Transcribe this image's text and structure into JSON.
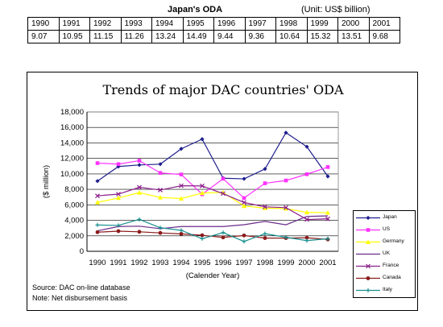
{
  "table": {
    "title": "Japan's ODA",
    "unit": "(Unit: US$ billion)",
    "years": [
      "1990",
      "1991",
      "1992",
      "1993",
      "1994",
      "1995",
      "1996",
      "1997",
      "1998",
      "1999",
      "2000",
      "2001"
    ],
    "values": [
      "9.07",
      "10.95",
      "11.15",
      "11.26",
      "13.24",
      "14.49",
      "9.44",
      "9.36",
      "10.64",
      "15.32",
      "13.51",
      "9.68"
    ]
  },
  "chart_data": {
    "type": "line",
    "title": "Trends of major DAC countries' ODA",
    "xlabel": "(Calender Year)",
    "ylabel": "($ million)",
    "ylim": [
      0,
      18000
    ],
    "yticks": [
      "0",
      "2,000",
      "4,000",
      "6,000",
      "8,000",
      "10,000",
      "12,000",
      "14,000",
      "16,000",
      "18,000"
    ],
    "categories": [
      "1990",
      "1991",
      "1992",
      "1993",
      "1994",
      "1995",
      "1996",
      "1997",
      "1998",
      "1999",
      "2000",
      "2001"
    ],
    "legend_position": "right",
    "series": [
      {
        "name": "Japan",
        "color": "#1f1f8f",
        "marker": "diamond",
        "values": [
          9069,
          10952,
          11151,
          11259,
          13239,
          14489,
          9439,
          9358,
          10640,
          15323,
          13508,
          9678
        ]
      },
      {
        "name": "US",
        "color": "#ff33ff",
        "marker": "square",
        "values": [
          11394,
          11262,
          11709,
          10123,
          9927,
          7367,
          9377,
          6878,
          8786,
          9145,
          9955,
          10884
        ]
      },
      {
        "name": "Germany",
        "color": "#ffff00",
        "marker": "triangle",
        "values": [
          6320,
          6890,
          7583,
          6954,
          6818,
          7524,
          7601,
          5857,
          5581,
          5515,
          5030,
          4990
        ]
      },
      {
        "name": "UK",
        "color": "#6a2a8a",
        "marker": "none",
        "values": [
          2638,
          3201,
          3243,
          2920,
          3197,
          3202,
          3199,
          3433,
          3864,
          3426,
          4501,
          4579
        ]
      },
      {
        "name": "France",
        "color": "#8b1f8b",
        "marker": "x",
        "values": [
          7163,
          7386,
          8270,
          7915,
          8466,
          8443,
          7451,
          6307,
          5742,
          5639,
          4105,
          4198
        ]
      },
      {
        "name": "Canada",
        "color": "#8b1a1a",
        "marker": "circle",
        "values": [
          2470,
          2604,
          2515,
          2373,
          2250,
          2067,
          1795,
          2045,
          1707,
          1706,
          1744,
          1533
        ]
      },
      {
        "name": "Italy",
        "color": "#1a9090",
        "marker": "plus",
        "values": [
          3395,
          3347,
          4122,
          3043,
          2705,
          1623,
          2416,
          1266,
          2278,
          1806,
          1376,
          1627
        ]
      }
    ]
  },
  "notes": {
    "source": "Source: DAC on-line database",
    "note": "Note: Net disbursement basis"
  }
}
